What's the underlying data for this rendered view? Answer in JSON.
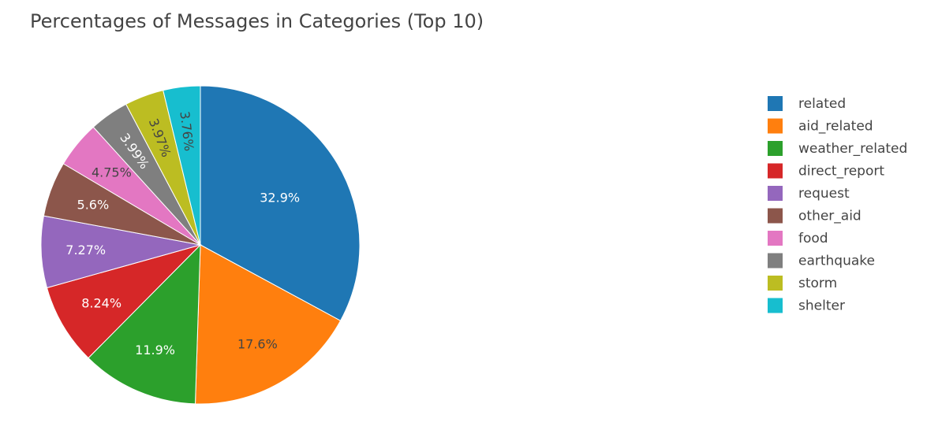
{
  "chart_data": {
    "type": "pie",
    "title": "Percentages of Messages in Categories (Top 10)",
    "categories": [
      "related",
      "aid_related",
      "weather_related",
      "direct_report",
      "request",
      "other_aid",
      "food",
      "earthquake",
      "storm",
      "shelter"
    ],
    "values": [
      32.9,
      17.6,
      11.9,
      8.24,
      7.27,
      5.6,
      4.75,
      3.99,
      3.97,
      3.76
    ],
    "labels": [
      "32.9%",
      "17.6%",
      "11.9%",
      "8.24%",
      "7.27%",
      "5.6%",
      "4.75%",
      "3.99%",
      "3.97%",
      "3.76%"
    ],
    "colors": [
      "#1f77b4",
      "#ff7f0e",
      "#2ca02c",
      "#d62728",
      "#9467bd",
      "#8c564b",
      "#e377c2",
      "#7f7f7f",
      "#bcbd22",
      "#17becf"
    ],
    "label_colors": [
      "#ffffff",
      "#444444",
      "#ffffff",
      "#ffffff",
      "#ffffff",
      "#ffffff",
      "#444444",
      "#ffffff",
      "#444444",
      "#444444"
    ],
    "direction": "clockwise",
    "legend_position": "right"
  }
}
